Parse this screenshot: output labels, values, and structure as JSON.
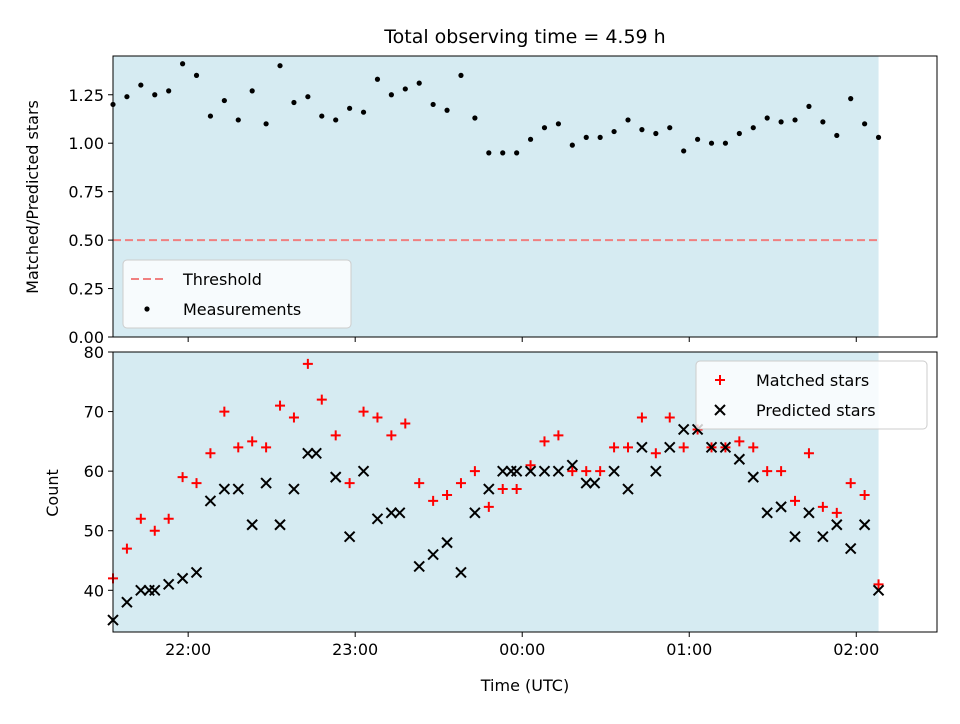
{
  "chart_data": [
    {
      "type": "scatter",
      "title": "Total observing time = 4.59 h",
      "xlabel": "",
      "ylabel": "Matched/Predicted stars",
      "xlim": [
        "21:33",
        "02:29"
      ],
      "ylim": [
        0,
        1.45
      ],
      "yticks": [
        "0.00",
        "0.25",
        "0.50",
        "0.75",
        "1.00",
        "1.25"
      ],
      "ytick_values": [
        0,
        0.25,
        0.5,
        0.75,
        1.0,
        1.25
      ],
      "shaded_span": [
        "21:33",
        "02:08"
      ],
      "threshold": {
        "name": "Threshold",
        "value": 0.5,
        "color": "#f08080"
      },
      "legend_position": "lower-left",
      "series": [
        {
          "name": "Measurements",
          "color": "#000000",
          "x": [
            "21:33",
            "21:38",
            "21:43",
            "21:48",
            "21:53",
            "21:58",
            "22:03",
            "22:08",
            "22:13",
            "22:18",
            "22:23",
            "22:28",
            "22:33",
            "22:38",
            "22:43",
            "22:48",
            "22:53",
            "22:58",
            "23:03",
            "23:08",
            "23:13",
            "23:18",
            "23:23",
            "23:28",
            "23:33",
            "23:38",
            "23:43",
            "23:48",
            "23:53",
            "23:58",
            "00:03",
            "00:08",
            "00:13",
            "00:18",
            "00:23",
            "00:28",
            "00:33",
            "00:38",
            "00:43",
            "00:48",
            "00:53",
            "00:58",
            "01:03",
            "01:08",
            "01:13",
            "01:18",
            "01:23",
            "01:28",
            "01:33",
            "01:38",
            "01:43",
            "01:48",
            "01:53",
            "01:58",
            "02:03",
            "02:08"
          ],
          "values": [
            1.2,
            1.24,
            1.3,
            1.25,
            1.27,
            1.41,
            1.35,
            1.14,
            1.22,
            1.12,
            1.27,
            1.1,
            1.4,
            1.21,
            1.24,
            1.14,
            1.12,
            1.18,
            1.16,
            1.33,
            1.25,
            1.28,
            1.31,
            1.2,
            1.17,
            1.35,
            1.13,
            0.95,
            0.95,
            0.95,
            1.02,
            1.08,
            1.1,
            0.99,
            1.03,
            1.03,
            1.06,
            1.12,
            1.07,
            1.05,
            1.08,
            0.96,
            1.02,
            1.0,
            1.0,
            1.05,
            1.08,
            1.13,
            1.11,
            1.12,
            1.19,
            1.11,
            1.04,
            1.23,
            1.1,
            1.03
          ]
        }
      ]
    },
    {
      "type": "scatter",
      "title": "",
      "xlabel": "Time (UTC)",
      "ylabel": "Count",
      "xlim": [
        "21:33",
        "02:29"
      ],
      "ylim": [
        33,
        80
      ],
      "yticks": [
        "40",
        "50",
        "60",
        "70",
        "80"
      ],
      "ytick_values": [
        40,
        50,
        60,
        70,
        80
      ],
      "xticks": [
        "22:00",
        "23:00",
        "00:00",
        "01:00",
        "02:00"
      ],
      "shaded_span": [
        "21:33",
        "02:08"
      ],
      "legend_position": "upper-right",
      "series": [
        {
          "name": "Matched stars",
          "marker": "plus",
          "color": "#ff0000",
          "x": [
            "21:33",
            "21:38",
            "21:43",
            "21:48",
            "21:53",
            "21:58",
            "22:03",
            "22:08",
            "22:13",
            "22:18",
            "22:23",
            "22:28",
            "22:33",
            "22:38",
            "22:43",
            "22:48",
            "22:53",
            "22:58",
            "23:03",
            "23:08",
            "23:13",
            "23:18",
            "23:23",
            "23:28",
            "23:33",
            "23:38",
            "23:43",
            "23:48",
            "23:53",
            "23:58",
            "00:03",
            "00:08",
            "00:13",
            "00:18",
            "00:23",
            "00:28",
            "00:33",
            "00:38",
            "00:43",
            "00:48",
            "00:53",
            "00:58",
            "01:03",
            "01:08",
            "01:13",
            "01:18",
            "01:23",
            "01:28",
            "01:33",
            "01:38",
            "01:43",
            "01:48",
            "01:53",
            "01:58",
            "02:03",
            "02:08"
          ],
          "values": [
            42,
            47,
            52,
            50,
            52,
            59,
            58,
            63,
            70,
            64,
            65,
            64,
            71,
            69,
            78,
            72,
            66,
            58,
            70,
            69,
            66,
            68,
            58,
            55,
            56,
            58,
            60,
            54,
            57,
            57,
            61,
            65,
            66,
            60,
            60,
            60,
            64,
            64,
            69,
            63,
            69,
            64,
            67,
            64,
            64,
            65,
            64,
            60,
            60,
            55,
            63,
            54,
            53,
            58,
            56,
            41
          ]
        },
        {
          "name": "Predicted stars",
          "marker": "x",
          "color": "#000000",
          "x": [
            "21:33",
            "21:38",
            "21:43",
            "21:46",
            "21:48",
            "21:53",
            "21:58",
            "22:03",
            "22:08",
            "22:13",
            "22:18",
            "22:23",
            "22:28",
            "22:33",
            "22:38",
            "22:43",
            "22:46",
            "22:53",
            "22:58",
            "23:03",
            "23:08",
            "23:13",
            "23:16",
            "23:23",
            "23:28",
            "23:33",
            "23:38",
            "23:43",
            "23:48",
            "23:53",
            "23:56",
            "23:58",
            "00:03",
            "00:08",
            "00:13",
            "00:18",
            "00:23",
            "00:26",
            "00:33",
            "00:38",
            "00:43",
            "00:48",
            "00:53",
            "00:58",
            "01:03",
            "01:08",
            "01:13",
            "01:18",
            "01:23",
            "01:28",
            "01:33",
            "01:38",
            "01:43",
            "01:48",
            "01:53",
            "01:58",
            "02:03",
            "02:08"
          ],
          "values": [
            35,
            38,
            40,
            40,
            40,
            41,
            42,
            43,
            55,
            57,
            57,
            51,
            58,
            51,
            57,
            63,
            63,
            59,
            49,
            60,
            52,
            53,
            53,
            44,
            46,
            48,
            43,
            53,
            57,
            60,
            60,
            60,
            60,
            60,
            60,
            61,
            58,
            58,
            60,
            57,
            64,
            60,
            64,
            67,
            67,
            64,
            64,
            62,
            59,
            53,
            54,
            49,
            53,
            49,
            51,
            47,
            51,
            40
          ]
        }
      ]
    }
  ]
}
